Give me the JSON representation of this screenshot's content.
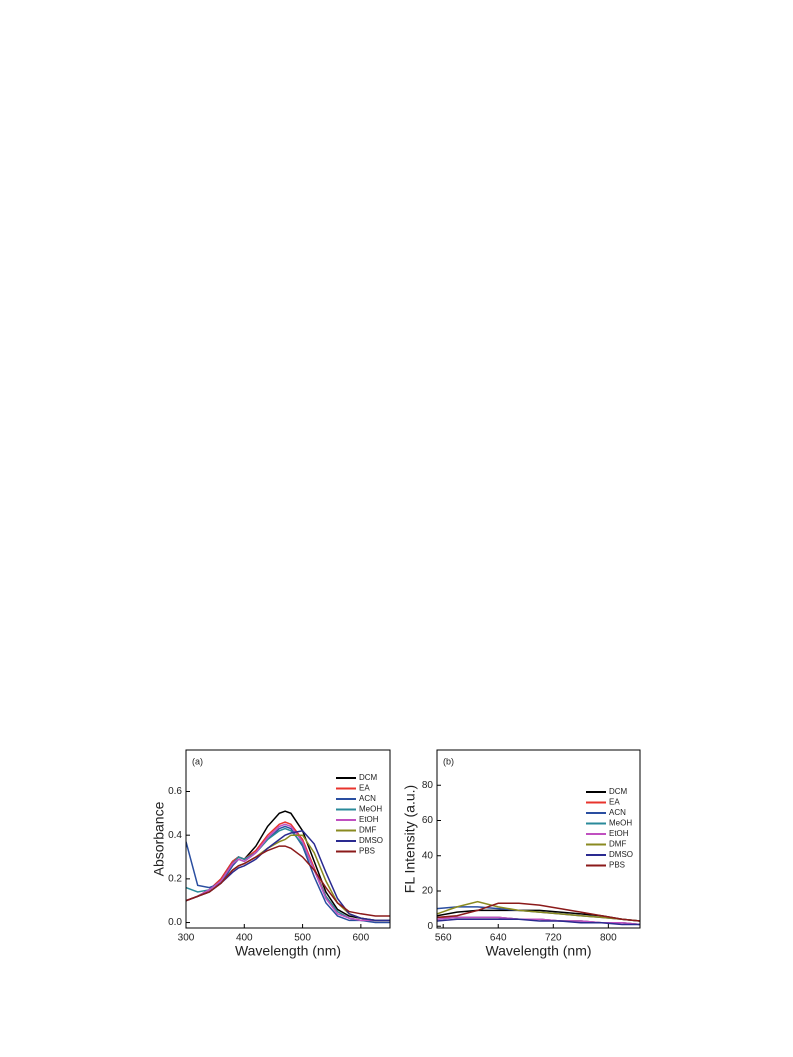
{
  "chart_data": [
    {
      "type": "line",
      "panel_label": "(a)",
      "xlabel": "Wavelength (nm)",
      "ylabel": "Absorbance",
      "x": [
        300,
        320,
        340,
        360,
        380,
        390,
        400,
        420,
        440,
        460,
        470,
        480,
        500,
        520,
        540,
        560,
        580,
        600,
        625,
        650
      ],
      "xlim": [
        300,
        650
      ],
      "xticks": [
        300,
        400,
        500,
        600
      ],
      "ylim": [
        -0.025,
        0.79
      ],
      "yticks": [
        {
          "value": 0,
          "label": "0.0"
        },
        0.2,
        0.4,
        0.6
      ],
      "legend": "upper right",
      "series": [
        {
          "name": "DCM",
          "color": "#000000",
          "values": [
            0.1,
            0.12,
            0.15,
            0.2,
            0.28,
            0.3,
            0.29,
            0.35,
            0.44,
            0.5,
            0.51,
            0.5,
            0.42,
            0.28,
            0.14,
            0.06,
            0.03,
            0.02,
            0.01,
            0.01
          ]
        },
        {
          "name": "EA",
          "color": "#e8342d",
          "values": [
            0.1,
            0.12,
            0.15,
            0.2,
            0.28,
            0.3,
            0.29,
            0.33,
            0.4,
            0.45,
            0.46,
            0.45,
            0.38,
            0.25,
            0.12,
            0.05,
            0.02,
            0.01,
            0.01,
            0.01
          ]
        },
        {
          "name": "ACN",
          "color": "#2a4ea0",
          "values": [
            0.37,
            0.17,
            0.16,
            0.18,
            0.26,
            0.29,
            0.28,
            0.32,
            0.38,
            0.43,
            0.44,
            0.43,
            0.35,
            0.21,
            0.09,
            0.03,
            0.01,
            0.01,
            0.0,
            0.0
          ]
        },
        {
          "name": "MeOH",
          "color": "#2a8a9a",
          "values": [
            0.16,
            0.14,
            0.15,
            0.19,
            0.27,
            0.3,
            0.29,
            0.32,
            0.38,
            0.42,
            0.43,
            0.42,
            0.36,
            0.24,
            0.12,
            0.05,
            0.02,
            0.01,
            0.01,
            0.01
          ]
        },
        {
          "name": "EtOH",
          "color": "#c050c0",
          "values": [
            0.1,
            0.12,
            0.15,
            0.19,
            0.27,
            0.29,
            0.28,
            0.32,
            0.39,
            0.44,
            0.45,
            0.44,
            0.37,
            0.24,
            0.11,
            0.04,
            0.02,
            0.01,
            0.01,
            0.01
          ]
        },
        {
          "name": "DMF",
          "color": "#8a8a20",
          "values": [
            0.1,
            0.12,
            0.14,
            0.18,
            0.24,
            0.26,
            0.27,
            0.3,
            0.34,
            0.37,
            0.38,
            0.4,
            0.4,
            0.32,
            0.19,
            0.09,
            0.04,
            0.02,
            0.01,
            0.01
          ]
        },
        {
          "name": "DMSO",
          "color": "#2a2a90",
          "values": [
            0.1,
            0.12,
            0.14,
            0.18,
            0.23,
            0.25,
            0.26,
            0.29,
            0.34,
            0.38,
            0.4,
            0.41,
            0.42,
            0.36,
            0.23,
            0.11,
            0.04,
            0.02,
            0.01,
            0.01
          ]
        },
        {
          "name": "PBS",
          "color": "#8b1a1a",
          "values": [
            0.1,
            0.12,
            0.14,
            0.18,
            0.24,
            0.26,
            0.27,
            0.3,
            0.33,
            0.35,
            0.35,
            0.34,
            0.3,
            0.24,
            0.16,
            0.09,
            0.05,
            0.04,
            0.03,
            0.03
          ]
        }
      ]
    },
    {
      "type": "line",
      "panel_label": "(b)",
      "xlabel": "Wavelength (nm)",
      "ylabel": "FL Intensity (a.u.)",
      "x": [
        551,
        580,
        610,
        640,
        670,
        700,
        730,
        760,
        790,
        820,
        846
      ],
      "xlim": [
        551,
        846
      ],
      "xticks": [
        560,
        640,
        720,
        800
      ],
      "ylim": [
        -1,
        100
      ],
      "yticks": [
        0,
        20,
        40,
        60,
        80
      ],
      "legend": "upper right",
      "series": [
        {
          "name": "DCM",
          "color": "#000000",
          "values": [
            6,
            8,
            9,
            9,
            9,
            9,
            8,
            7,
            6,
            4,
            3
          ]
        },
        {
          "name": "EA",
          "color": "#e8342d",
          "values": [
            5,
            5,
            5,
            5,
            4,
            4,
            3,
            3,
            2,
            2,
            1
          ]
        },
        {
          "name": "ACN",
          "color": "#2a4ea0",
          "values": [
            10,
            11,
            11,
            10,
            9,
            8,
            7,
            6,
            5,
            4,
            3
          ]
        },
        {
          "name": "MeOH",
          "color": "#2a8a9a",
          "values": [
            4,
            5,
            5,
            5,
            4,
            4,
            3,
            3,
            2,
            2,
            1
          ]
        },
        {
          "name": "EtOH",
          "color": "#c050c0",
          "values": [
            4,
            5,
            5,
            5,
            4,
            4,
            3,
            3,
            2,
            2,
            1
          ]
        },
        {
          "name": "DMF",
          "color": "#8a8a20",
          "values": [
            7,
            11,
            14,
            11,
            9,
            8,
            7,
            6,
            5,
            4,
            3
          ]
        },
        {
          "name": "DMSO",
          "color": "#2a2a90",
          "values": [
            3,
            4,
            4,
            4,
            4,
            3,
            3,
            2,
            2,
            1,
            1
          ]
        },
        {
          "name": "PBS",
          "color": "#8b1a1a",
          "values": [
            5,
            6,
            9,
            13,
            13,
            12,
            10,
            8,
            6,
            4,
            3
          ]
        }
      ]
    }
  ]
}
